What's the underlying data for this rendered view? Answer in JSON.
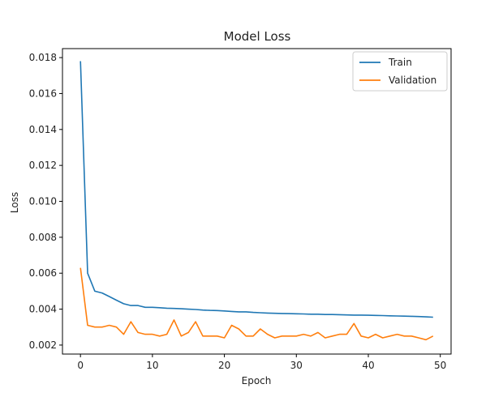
{
  "chart_data": {
    "type": "line",
    "title": "Model Loss",
    "xlabel": "Epoch",
    "ylabel": "Loss",
    "xlim": [
      -2.5,
      51.5
    ],
    "ylim": [
      0.0015,
      0.0185
    ],
    "xticks": [
      0,
      10,
      20,
      30,
      40,
      50
    ],
    "xtick_labels": [
      "0",
      "10",
      "20",
      "30",
      "40",
      "50"
    ],
    "yticks": [
      0.002,
      0.004,
      0.006,
      0.008,
      0.01,
      0.012,
      0.014,
      0.016,
      0.018
    ],
    "ytick_labels": [
      "0.002",
      "0.004",
      "0.006",
      "0.008",
      "0.010",
      "0.012",
      "0.014",
      "0.016",
      "0.018"
    ],
    "grid": false,
    "legend_position": "top-right",
    "x": [
      0,
      1,
      2,
      3,
      4,
      5,
      6,
      7,
      8,
      9,
      10,
      11,
      12,
      13,
      14,
      15,
      16,
      17,
      18,
      19,
      20,
      21,
      22,
      23,
      24,
      25,
      26,
      27,
      28,
      29,
      30,
      31,
      32,
      33,
      34,
      35,
      36,
      37,
      38,
      39,
      40,
      41,
      42,
      43,
      44,
      45,
      46,
      47,
      48,
      49
    ],
    "series": [
      {
        "name": "Train",
        "color": "#1f77b4",
        "values": [
          0.0178,
          0.006,
          0.005,
          0.0049,
          0.0047,
          0.0045,
          0.0043,
          0.0042,
          0.0042,
          0.0041,
          0.0041,
          0.00408,
          0.00405,
          0.00404,
          0.00402,
          0.004,
          0.00398,
          0.00395,
          0.00393,
          0.00392,
          0.0039,
          0.00387,
          0.00385,
          0.00385,
          0.00382,
          0.0038,
          0.00378,
          0.00377,
          0.00376,
          0.00375,
          0.00374,
          0.00373,
          0.00372,
          0.00372,
          0.0037,
          0.0037,
          0.00369,
          0.00368,
          0.00367,
          0.00367,
          0.00366,
          0.00365,
          0.00364,
          0.00363,
          0.00362,
          0.00361,
          0.0036,
          0.00359,
          0.00357,
          0.00355
        ]
      },
      {
        "name": "Validation",
        "color": "#ff7f0e",
        "values": [
          0.0063,
          0.0031,
          0.003,
          0.003,
          0.0031,
          0.003,
          0.0026,
          0.0033,
          0.0027,
          0.0026,
          0.0026,
          0.0025,
          0.0026,
          0.0034,
          0.0025,
          0.0027,
          0.0033,
          0.0025,
          0.0025,
          0.0025,
          0.0024,
          0.0031,
          0.0029,
          0.0025,
          0.0025,
          0.0029,
          0.0026,
          0.0024,
          0.0025,
          0.0025,
          0.0025,
          0.0026,
          0.0025,
          0.0027,
          0.0024,
          0.0025,
          0.0026,
          0.0026,
          0.0032,
          0.0025,
          0.0024,
          0.0026,
          0.0024,
          0.0025,
          0.0026,
          0.0025,
          0.0025,
          0.0024,
          0.0023,
          0.0025
        ]
      }
    ]
  }
}
